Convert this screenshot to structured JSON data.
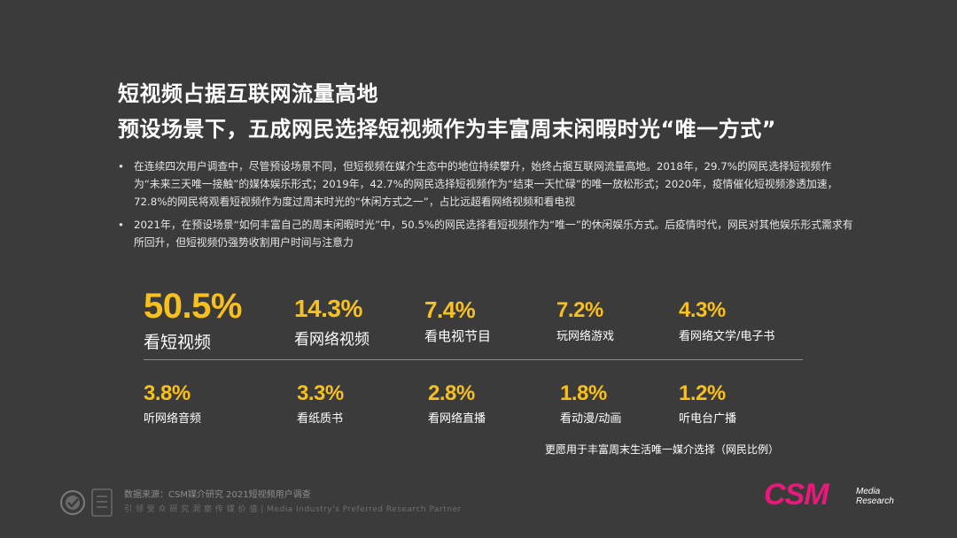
{
  "title_line1": "短视频占据互联网流量高地",
  "title_line2": "预设场景下，五成网民选择短视频作为丰富周末闲暇时光“唯一方式”",
  "bullets": [
    "在连续四次用户调查中，尽管预设场景不同，但短视频在媒介生态中的地位持续攀升，始终占据互联网流量高地。2018年，29.7%的网民选择短视频作为“未来三天唯一接触”的媒体娱乐形式；2019年，42.7%的网民选择短视频作为“结束一天忙碌”的唯一放松形式；2020年，疫情催化短视频渗透加速，72.8%的网民将观看短视频作为度过周末时光的“休闲方式之一”，占比远超看网络视频和看电视",
    "2021年，在预设场景“如何丰富自己的周末闲暇时光”中，50.5%的网民选择看短视频作为“唯一”的休闲娱乐方式。后疫情时代，网民对其他娱乐形式需求有所回升，但短视频仍强势收割用户时间与注意力"
  ],
  "chart_data": {
    "type": "table",
    "title": "",
    "caption": "更愿用于丰富周末生活唯一媒介选择（网民比例）",
    "unit": "%",
    "categories": [
      "看短视频",
      "看网络视频",
      "看电视节目",
      "玩网络游戏",
      "看网络文学/电子书",
      "听网络音频",
      "看纸质书",
      "看网络直播",
      "看动漫/动画",
      "听电台广播"
    ],
    "values": [
      50.5,
      14.3,
      7.4,
      7.2,
      4.3,
      3.8,
      3.3,
      2.8,
      1.8,
      1.2
    ],
    "value_labels": [
      "50.5%",
      "14.3%",
      "7.4%",
      "7.2%",
      "4.3%",
      "3.8%",
      "3.3%",
      "2.8%",
      "1.8%",
      "1.2%"
    ],
    "value_color": "#f7c01c"
  },
  "source": "数据来源：CSM媒介研究 2021短视频用户调查",
  "tagline": "引 领 受 众 研 究   洞 察 传 媒 价 值 | Media Industry's Preferred Research Partner",
  "logo": {
    "main": "CSM",
    "sub_line1": "Media",
    "sub_line2": "Research",
    "color": "#e8197a"
  },
  "colors": {
    "background": "#3b3b3b",
    "accent": "#f7c01c"
  }
}
